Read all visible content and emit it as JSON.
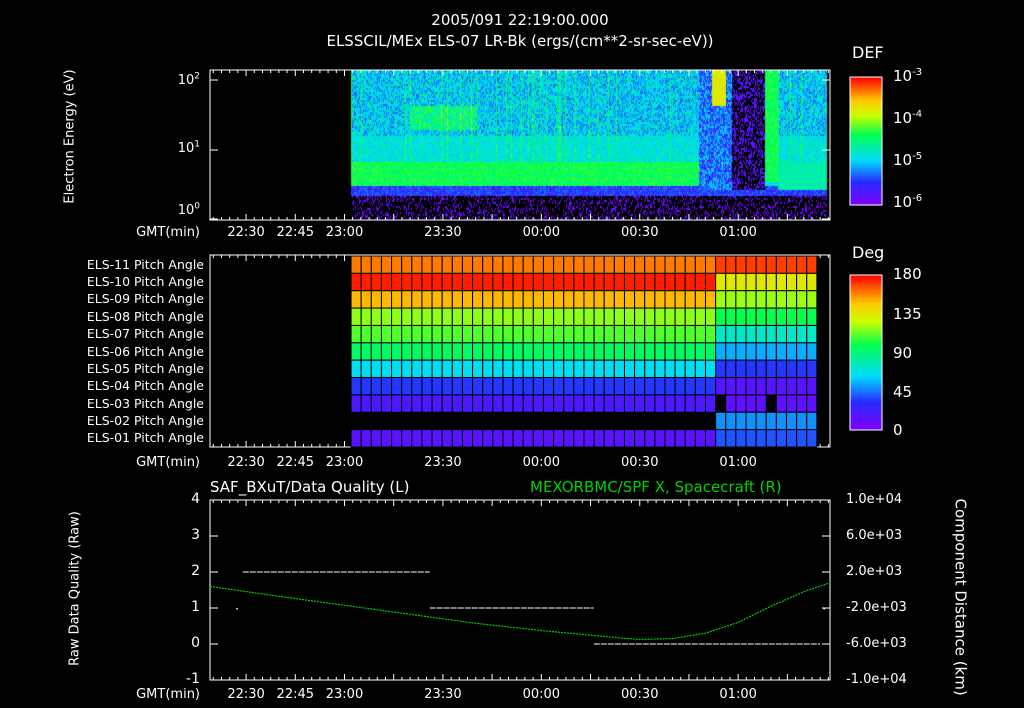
{
  "header": {
    "timestamp": "2005/091 22:19:00.000",
    "title": "ELSSCIL/MEx ELS-07 LR-Bk  (ergs/(cm**2-sr-sec-eV))"
  },
  "time_axis": {
    "label": "GMT(min)",
    "ticks": [
      "22:30",
      "22:45",
      "23:00",
      "23:30",
      "00:00",
      "00:30",
      "01:00"
    ],
    "tick_minutes": [
      -30,
      -15,
      0,
      30,
      60,
      90,
      120
    ],
    "start_minute": -41,
    "end_minute": 148
  },
  "chart_data": [
    {
      "type": "heatmap",
      "name": "electron-spectrogram",
      "ylabel": "Electron Energy (eV)",
      "yscale": "log",
      "ylim": [
        1,
        200
      ],
      "yticks": [
        "10^0",
        "10^1",
        "10^2"
      ],
      "data_start_minute": 2,
      "data_end_minute": 147,
      "colorbar": {
        "title": "DEF",
        "scale": "log",
        "range": [
          1e-06,
          0.001
        ],
        "ticks": [
          "10^-3",
          "10^-4",
          "10^-5",
          "10^-6"
        ]
      }
    },
    {
      "type": "heatmap",
      "name": "pitch-angle",
      "rows": [
        "ELS-11 Pitch Angle",
        "ELS-10 Pitch Angle",
        "ELS-09 Pitch Angle",
        "ELS-08 Pitch Angle",
        "ELS-07 Pitch Angle",
        "ELS-06 Pitch Angle",
        "ELS-05 Pitch Angle",
        "ELS-04 Pitch Angle",
        "ELS-03 Pitch Angle",
        "ELS-02 Pitch Angle",
        "ELS-01 Pitch Angle"
      ],
      "values_before_0050_deg": [
        160,
        175,
        150,
        118,
        110,
        95,
        65,
        35,
        20,
        null,
        15
      ],
      "values_after_0050_deg": [
        170,
        135,
        120,
        100,
        75,
        55,
        35,
        15,
        12,
        50,
        40
      ],
      "transition_minute": 112,
      "data_start_minute": 2,
      "data_end_minute": 144,
      "colorbar": {
        "title": "Deg",
        "range": [
          0,
          180
        ],
        "ticks": [
          "180",
          "135",
          "90",
          "45",
          "0"
        ]
      }
    },
    {
      "type": "line",
      "name": "data-quality-and-position",
      "title_left": "SAF_BXuT/Data Quality (L)",
      "title_right": "MEXORBMC/SPF X, Spacecraft (R)",
      "ylabel_left": "Raw Data Quality (Raw)",
      "ylabel_right": "Component Distance (km)",
      "ylim_left": [
        -1,
        4
      ],
      "yticks_left": [
        "4",
        "3",
        "2",
        "1",
        "0",
        "-1"
      ],
      "ylim_right": [
        -10000,
        10000
      ],
      "yticks_right": [
        "1.0e+04",
        "6.0e+03",
        "2.0e+03",
        "-2.0e+03",
        "-6.0e+03",
        "-1.0e+04"
      ],
      "series": [
        {
          "name": "Data Quality",
          "color": "#ffffff",
          "segments": [
            {
              "x": [
                -31,
                26
              ],
              "y": 2
            },
            {
              "x": [
                26,
                76
              ],
              "y": 1
            },
            {
              "x": [
                76,
                145
              ],
              "y": 0
            },
            {
              "x": [
                -33,
                -33
              ],
              "y": 1
            },
            {
              "x": [
                146,
                146
              ],
              "y": 1
            }
          ]
        },
        {
          "name": "SPF X",
          "color": "#00d000",
          "x": [
            -41,
            -20,
            0,
            20,
            40,
            60,
            80,
            90,
            100,
            110,
            120,
            130,
            140,
            148
          ],
          "y": [
            400,
            -700,
            -1700,
            -2700,
            -3700,
            -4500,
            -5200,
            -5500,
            -5400,
            -4800,
            -3600,
            -1800,
            -200,
            800
          ]
        }
      ]
    }
  ]
}
